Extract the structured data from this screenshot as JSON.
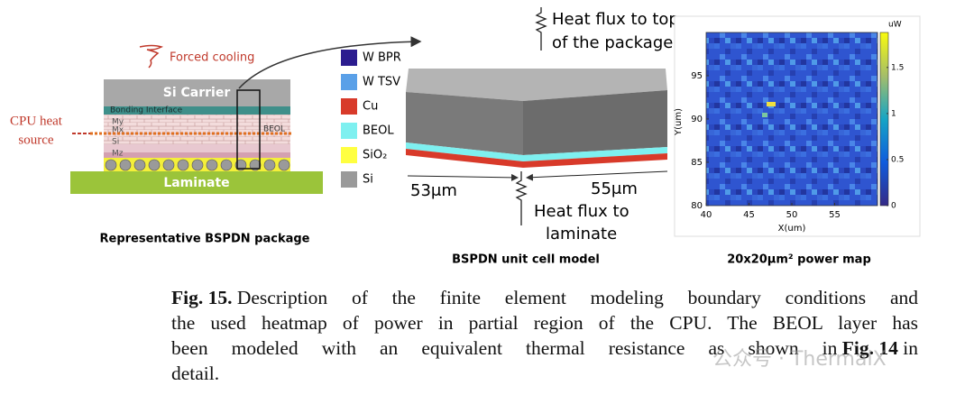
{
  "left_panel": {
    "forced_cooling": "Forced cooling",
    "si_carrier": "Si Carrier",
    "bonding_interface": "Bonding Interface",
    "my": "My",
    "mx": "Mx",
    "si": "Si",
    "mz": "Mz",
    "beol": "BEOL",
    "cpu_heat_source": [
      "CPU heat",
      "source"
    ],
    "laminate": "Laminate",
    "caption": "Representative BSPDN package"
  },
  "middle_panel": {
    "legend": [
      {
        "label": "W BPR",
        "color": "#2b1c8f"
      },
      {
        "label": "W TSV",
        "color": "#5aa0e8"
      },
      {
        "label": "Cu",
        "color": "#d83a2a"
      },
      {
        "label": "BEOL",
        "color": "#7ef0f0"
      },
      {
        "label": "SiO₂",
        "color": "#ffff40"
      },
      {
        "label": "Si",
        "color": "#9a9a9a"
      }
    ],
    "heat_flux_top": [
      "Heat flux to top",
      "of the package"
    ],
    "heat_flux_bottom": [
      "Heat flux to",
      "laminate"
    ],
    "dim_left": "53μm",
    "dim_right": "55μm",
    "caption": "BSPDN unit cell model"
  },
  "right_panel": {
    "unit": "uW",
    "y_label": "Y(um)",
    "x_label": "X(um)",
    "xlim": [
      40,
      60
    ],
    "xticks": [
      40,
      45,
      50,
      55
    ],
    "ylim": [
      80,
      100
    ],
    "yticks": [
      80,
      85,
      90,
      95
    ],
    "colorbar_lim": [
      0,
      1.88
    ],
    "colorbar_ticks": [
      0,
      0.5,
      1,
      1.5
    ],
    "caption": "20x20μm² power map"
  },
  "caption": {
    "label": "Fig. 15.",
    "line1": "Description of the finite element modeling boundary conditions and",
    "line2": "the used heatmap of power in partial region of the CPU. The BEOL layer has",
    "line3_start": "been modeled with an equivalent thermal resistance as shown in",
    "line3_ref": "Fig. 14",
    "line3_end": "in",
    "line4": "detail."
  },
  "watermark": "公众号 · ThermalX"
}
